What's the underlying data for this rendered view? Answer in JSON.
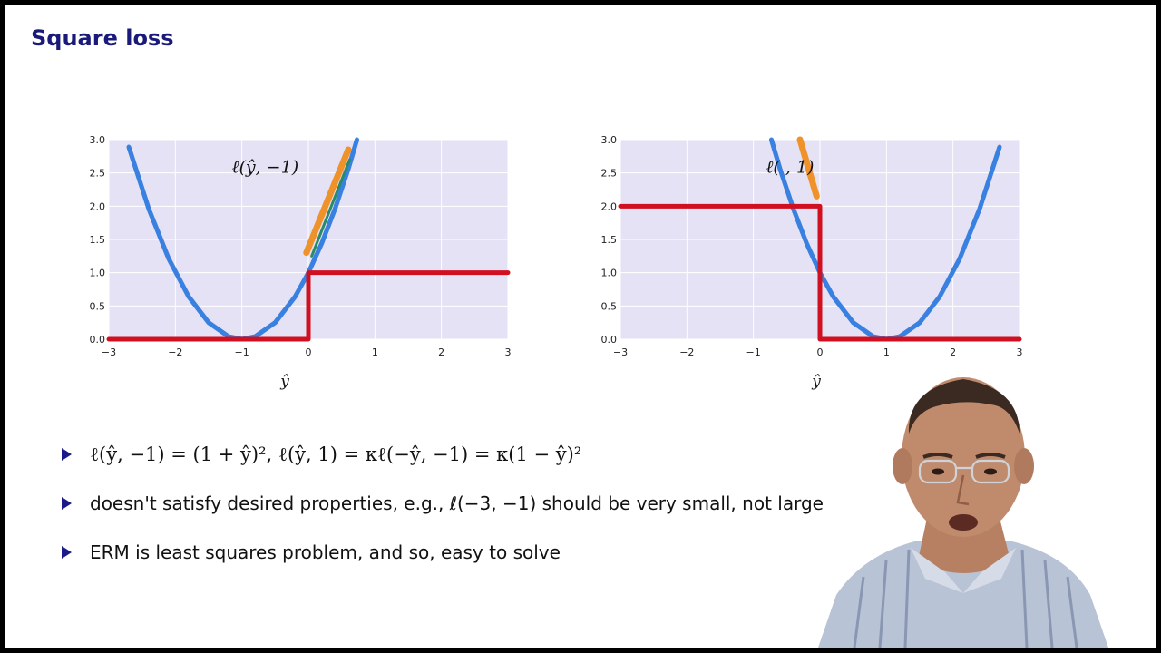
{
  "slide": {
    "title": "Square loss"
  },
  "bullets": [
    {
      "text": "ℓ(ŷ, −1) = (1 + ŷ)²,    ℓ(ŷ, 1) = κℓ(−ŷ, −1) = κ(1 − ŷ)²"
    },
    {
      "text": "doesn't satisfy desired properties, e.g., ℓ(−3, −1) should be very small, not large"
    },
    {
      "text": "ERM is least squares problem, and so, easy to solve"
    }
  ],
  "colors": {
    "plot_background": "#e4e2f4",
    "grid": "#ffffff",
    "loss_curve": "#9b8be3",
    "annotation_blue": "#2f7fe0",
    "annotation_red": "#d01020",
    "annotation_orange": "#f0922a",
    "annotation_green": "#2a8a6a",
    "title": "#1a1a7a"
  },
  "chart_data": [
    {
      "type": "line",
      "xlabel": "ŷ",
      "ylabel": "",
      "xlim": [
        -3,
        3
      ],
      "ylim": [
        0,
        3
      ],
      "xticks": [
        "−3",
        "−2",
        "−1",
        "0",
        "1",
        "2",
        "3"
      ],
      "yticks": [
        "0.0",
        "0.5",
        "1.0",
        "1.5",
        "2.0",
        "2.5",
        "3.0"
      ],
      "grid": true,
      "annotation": "ℓ(ŷ, −1)",
      "series": [
        {
          "x": [
            -2.7,
            -2.4,
            -2.1,
            -1.8,
            -1.5,
            -1.2,
            -1.0,
            -0.8,
            -0.5,
            -0.2,
            0.0,
            0.2,
            0.4,
            0.6,
            0.73
          ],
          "y": [
            2.89,
            1.96,
            1.21,
            0.64,
            0.25,
            0.04,
            0.0,
            0.04,
            0.25,
            0.64,
            1.0,
            1.44,
            1.96,
            2.56,
            3.0
          ]
        }
      ],
      "hand_drawn_step": {
        "x": [
          -3,
          0,
          0,
          3
        ],
        "y": [
          0,
          0,
          1,
          1
        ]
      }
    },
    {
      "type": "line",
      "xlabel": "ŷ",
      "ylabel": "",
      "xlim": [
        -3,
        3
      ],
      "ylim": [
        0,
        3
      ],
      "xticks": [
        "−3",
        "−2",
        "−1",
        "0",
        "1",
        "2",
        "3"
      ],
      "yticks": [
        "0.0",
        "0.5",
        "1.0",
        "1.5",
        "2.0",
        "2.5",
        "3.0"
      ],
      "grid": true,
      "annotation": "ℓ(  , 1)",
      "series": [
        {
          "x": [
            -0.73,
            -0.6,
            -0.4,
            -0.2,
            0.0,
            0.2,
            0.5,
            0.8,
            1.0,
            1.2,
            1.5,
            1.8,
            2.1,
            2.4,
            2.7
          ],
          "y": [
            3.0,
            2.56,
            1.96,
            1.44,
            1.0,
            0.64,
            0.25,
            0.04,
            0.0,
            0.04,
            0.25,
            0.64,
            1.21,
            1.96,
            2.89
          ]
        }
      ],
      "hand_drawn_step": {
        "x": [
          -3,
          0,
          0,
          3
        ],
        "y": [
          2,
          2,
          0,
          0
        ]
      }
    }
  ]
}
